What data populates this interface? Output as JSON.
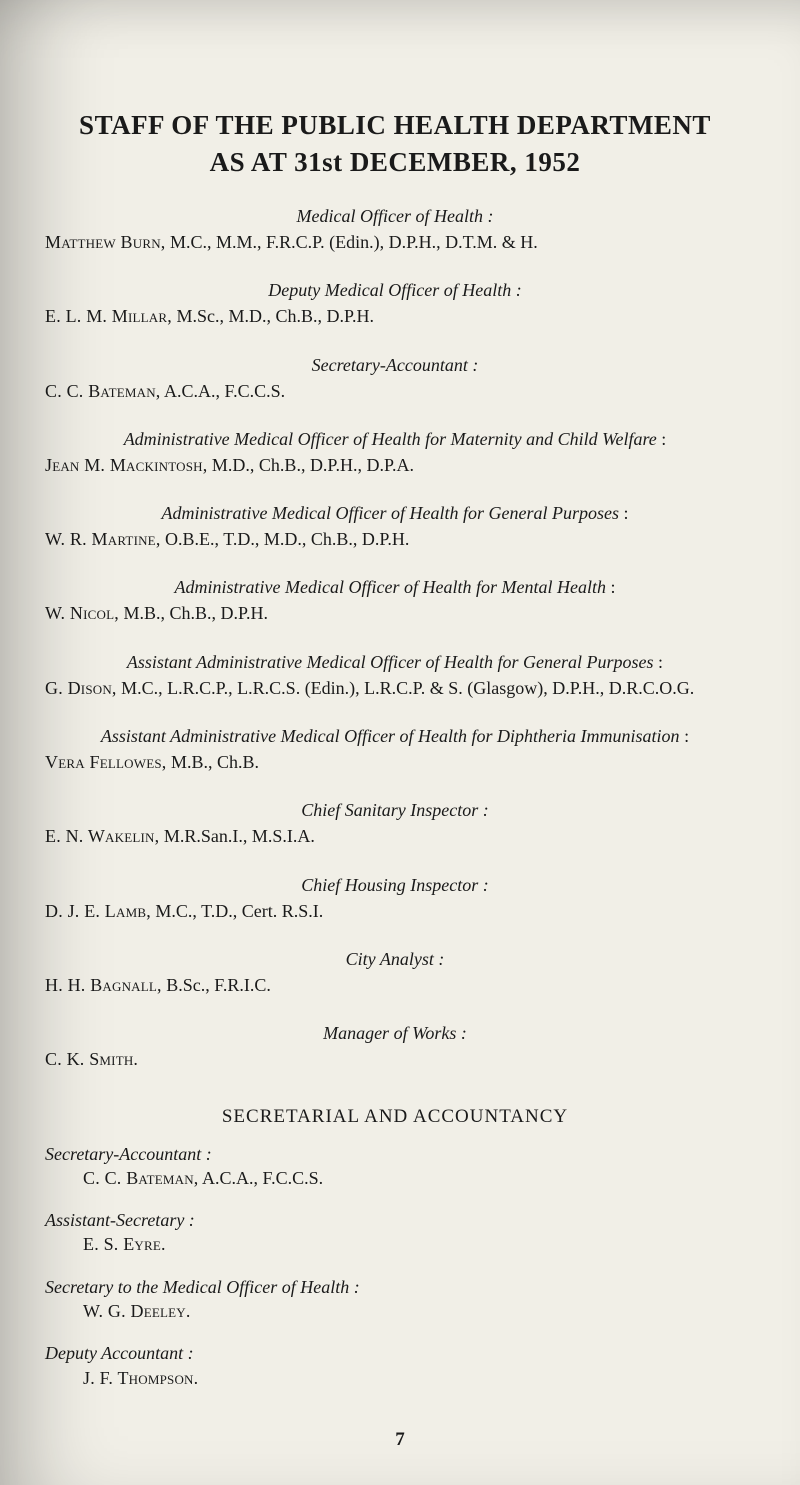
{
  "title": {
    "line1": "STAFF OF THE PUBLIC HEALTH DEPARTMENT",
    "line2": "AS AT 31st DECEMBER, 1952"
  },
  "entries": [
    {
      "role": "Medical Officer of Health :",
      "name_sc": "Matthew Burn,",
      "creds": " M.C., M.M., F.R.C.P. (Edin.), D.P.H., D.T.M. & H."
    },
    {
      "role": "Deputy Medical Officer of Health :",
      "name_sc": "E. L. M. Millar,",
      "creds": " M.Sc., M.D., Ch.B., D.P.H."
    },
    {
      "role": "Secretary-Accountant :",
      "name_sc": "C. C. Bateman,",
      "creds": " A.C.A., F.C.C.S."
    },
    {
      "role": "Administrative Medical Officer of Health for Maternity and Child Welfare",
      "name_sc": "Jean M. Mackintosh,",
      "creds": " M.D., Ch.B., D.P.H., D.P.A.",
      "colon_out": " :"
    },
    {
      "role": "Administrative Medical Officer of Health for General Purposes",
      "name_sc": "W. R. Martine,",
      "creds": " O.B.E., T.D., M.D., Ch.B., D.P.H.",
      "colon_out": " :"
    },
    {
      "role": "Administrative Medical Officer of Health for Mental Health",
      "name_sc": "W. Nicol,",
      "creds": " M.B., Ch.B., D.P.H.",
      "colon_out": " :"
    },
    {
      "role": "Assistant Administrative Medical Officer of Health for General Purposes",
      "name_sc": "G. Dison,",
      "creds": " M.C., L.R.C.P., L.R.C.S. (Edin.), L.R.C.P. & S. (Glasgow), D.P.H., D.R.C.O.G.",
      "colon_out": " :"
    },
    {
      "role": "Assistant Administrative Medical Officer of Health for Diphtheria Immunisation",
      "name_sc": "Vera Fellowes,",
      "creds": " M.B., Ch.B.",
      "colon_out": " :"
    },
    {
      "role": "Chief Sanitary Inspector :",
      "name_sc": "E. N. Wakelin,",
      "creds": " M.R.San.I., M.S.I.A."
    },
    {
      "role": "Chief Housing Inspector :",
      "name_sc": "D. J. E. Lamb,",
      "creds": " M.C., T.D., Cert. R.S.I."
    },
    {
      "role": "City Analyst :",
      "name_sc": "H. H. Bagnall,",
      "creds": " B.Sc., F.R.I.C."
    },
    {
      "role": "Manager of Works :",
      "name_sc": "C. K. Smith.",
      "creds": ""
    }
  ],
  "section_heading": "SECRETARIAL AND ACCOUNTANCY",
  "sec_entries": [
    {
      "role": "Secretary-Accountant :",
      "name_sc": "C. C. Bateman,",
      "creds": " A.C.A., F.C.C.S."
    },
    {
      "role": "Assistant-Secretary :",
      "name_sc": "E. S. Eyre.",
      "creds": ""
    },
    {
      "role": "Secretary to the Medical Officer of Health :",
      "name_sc": "W. G. Deeley.",
      "creds": ""
    },
    {
      "role": "Deputy Accountant :",
      "name_sc": "J. F. Thompson.",
      "creds": ""
    }
  ],
  "page_number": "7"
}
